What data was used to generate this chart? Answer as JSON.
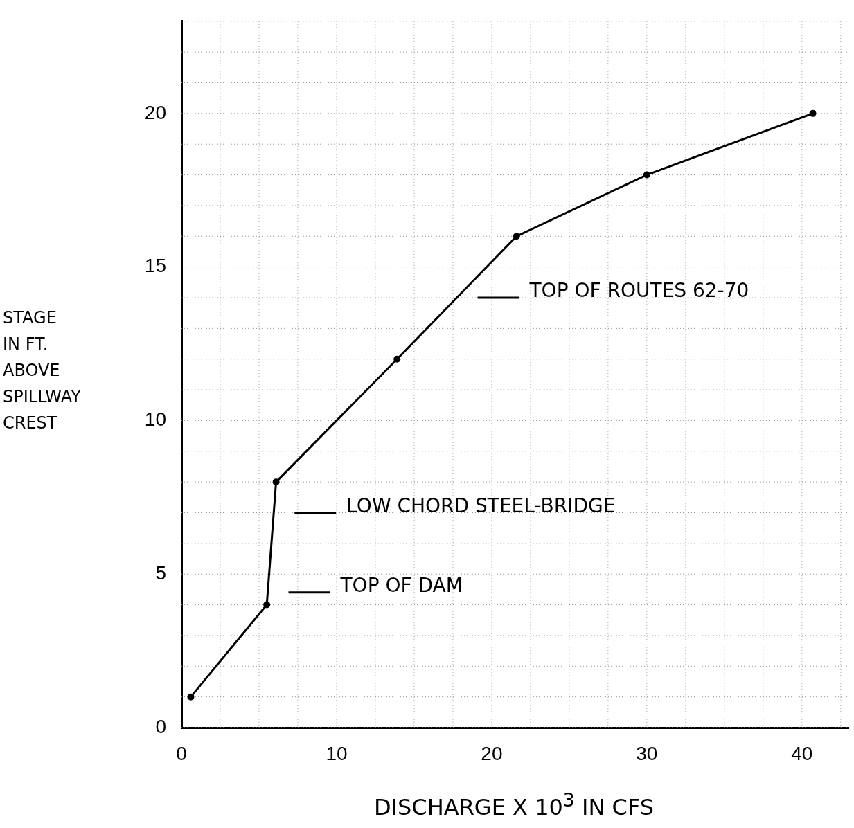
{
  "chart_data": {
    "type": "line",
    "xlabel": "DISCHARGE X 10$^{3}$ IN CFS",
    "ylabel": "STAGE IN FT. ABOVE SPILLWAY CREST",
    "x": [
      0.6,
      5.5,
      6.1,
      13.9,
      21.6,
      30,
      40.7
    ],
    "series": [
      {
        "color": "#000000",
        "values": [
          1.0,
          4.0,
          8.0,
          12.0,
          16.0,
          18.0,
          20.0
        ]
      }
    ],
    "xlim": [
      0,
      43
    ],
    "ylim": [
      0,
      23
    ],
    "xticks": [
      0,
      10,
      20,
      30,
      40
    ],
    "yticks": [
      0,
      5,
      10,
      15,
      20
    ],
    "grid": true,
    "legend": false,
    "marker": "circle",
    "line_style": "solid",
    "ref_lines": [
      {
        "axis": "y",
        "value": 4.4,
        "label": "TOP OF DAM"
      },
      {
        "axis": "y",
        "value": 7.0,
        "label": "LOW CHORD STEEL-BRIDGE"
      },
      {
        "axis": "y",
        "value": 14.0,
        "label": "TOP OF ROUTES 62-70"
      }
    ]
  }
}
